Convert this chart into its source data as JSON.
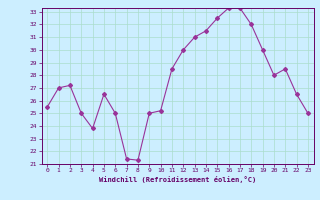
{
  "hours": [
    0,
    1,
    2,
    3,
    4,
    5,
    6,
    7,
    8,
    9,
    10,
    11,
    12,
    13,
    14,
    15,
    16,
    17,
    18,
    19,
    20,
    21,
    22,
    23
  ],
  "values": [
    25.5,
    27.0,
    27.2,
    25.0,
    23.8,
    26.5,
    25.0,
    21.4,
    21.3,
    25.0,
    25.2,
    28.5,
    30.0,
    31.0,
    31.5,
    32.5,
    33.3,
    33.3,
    32.0,
    30.0,
    28.0,
    28.5,
    26.5,
    25.0
  ],
  "line_color": "#993399",
  "marker": "D",
  "marker_size": 2,
  "bg_color": "#cceeff",
  "grid_color": "#aaddcc",
  "tick_color": "#660066",
  "label_color": "#660066",
  "xlabel": "Windchill (Refroidissement éolien,°C)",
  "ylim_min": 21,
  "ylim_max": 33,
  "xlim_min": 0,
  "xlim_max": 23,
  "yticks": [
    21,
    22,
    23,
    24,
    25,
    26,
    27,
    28,
    29,
    30,
    31,
    32,
    33
  ],
  "xticks": [
    0,
    1,
    2,
    3,
    4,
    5,
    6,
    7,
    8,
    9,
    10,
    11,
    12,
    13,
    14,
    15,
    16,
    17,
    18,
    19,
    20,
    21,
    22,
    23
  ]
}
